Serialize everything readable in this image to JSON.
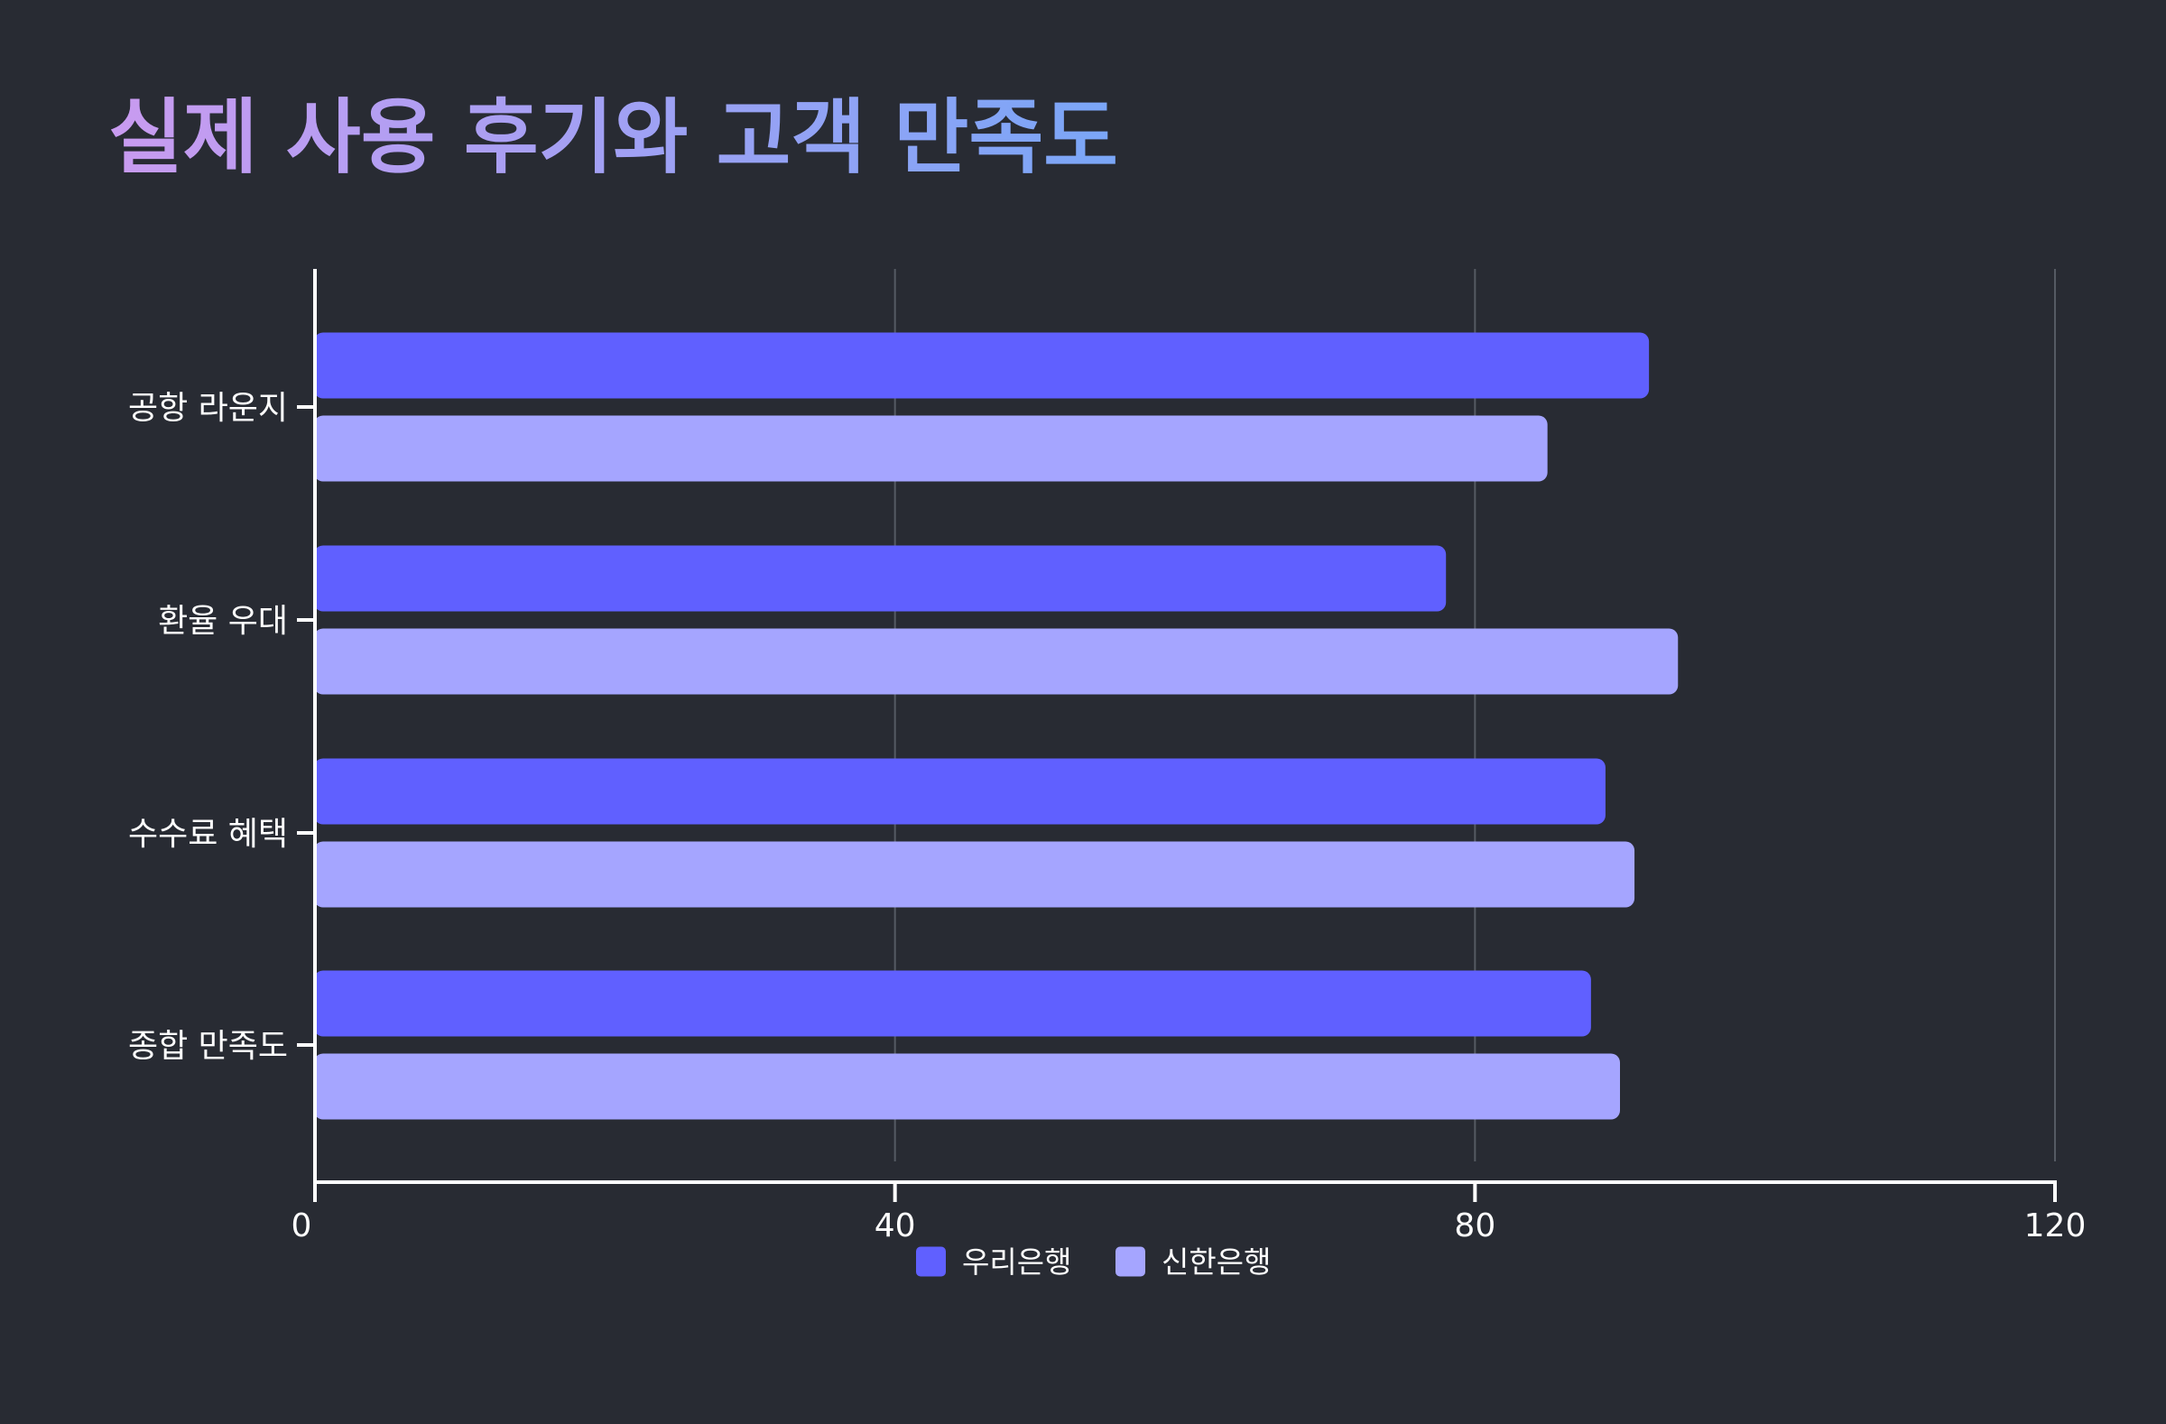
{
  "chart_data": {
    "type": "bar",
    "orientation": "horizontal",
    "title": "실제 사용 후기와 고객 만족도",
    "categories": [
      "공항 라운지",
      "환율 우대",
      "수수료 혜택",
      "종합 만족도"
    ],
    "series": [
      {
        "name": "우리은행",
        "values": [
          92,
          78,
          89,
          88
        ],
        "color": "#6060ff"
      },
      {
        "name": "신한은행",
        "values": [
          85,
          94,
          91,
          90
        ],
        "color": "#a5a5ff"
      }
    ],
    "xlim": [
      0,
      120
    ],
    "xticks": [
      0,
      40,
      80,
      120
    ],
    "xlabel": "",
    "ylabel": "",
    "grid": "vertical",
    "legend": "bottom-center",
    "colors": {
      "background": "#282b33",
      "title_gradient_start": "#c99bf0",
      "title_gradient_end": "#7aa6f7",
      "axis": "#ffffff",
      "grid": "#555a63"
    }
  }
}
